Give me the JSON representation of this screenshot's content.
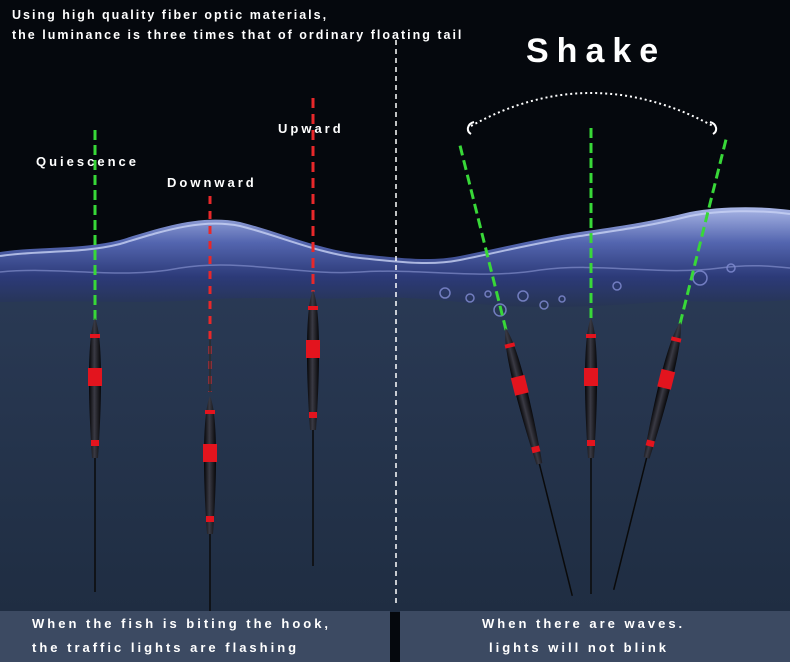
{
  "header": {
    "line1": "Using high quality fiber optic materials,",
    "line2": "the luminance is three times that of ordinary floating tail"
  },
  "right_title": "Shake",
  "left_panel": {
    "labels": {
      "quiescence": "Quiescence",
      "downward": "Downward",
      "upward": "Upward"
    },
    "caption_line1": "When the fish is biting the hook,",
    "caption_line2": "the traffic lights are flashing"
  },
  "right_panel": {
    "caption_line1": "When there are waves.",
    "caption_line2": "lights will not blink"
  },
  "colors": {
    "background_sky": "#05080d",
    "water_deep": "#243247",
    "water_surface": "#5c6fae",
    "tail_green": "#38d838",
    "tail_red": "#e8282a",
    "float_band_red": "#e3141e",
    "float_body": "#0c0c10",
    "caption_panel": "#3c4a62",
    "divider": "#ffffff"
  },
  "icons": [
    "fishing-float-icon",
    "bubble-icon",
    "arc-dotted-icon"
  ]
}
